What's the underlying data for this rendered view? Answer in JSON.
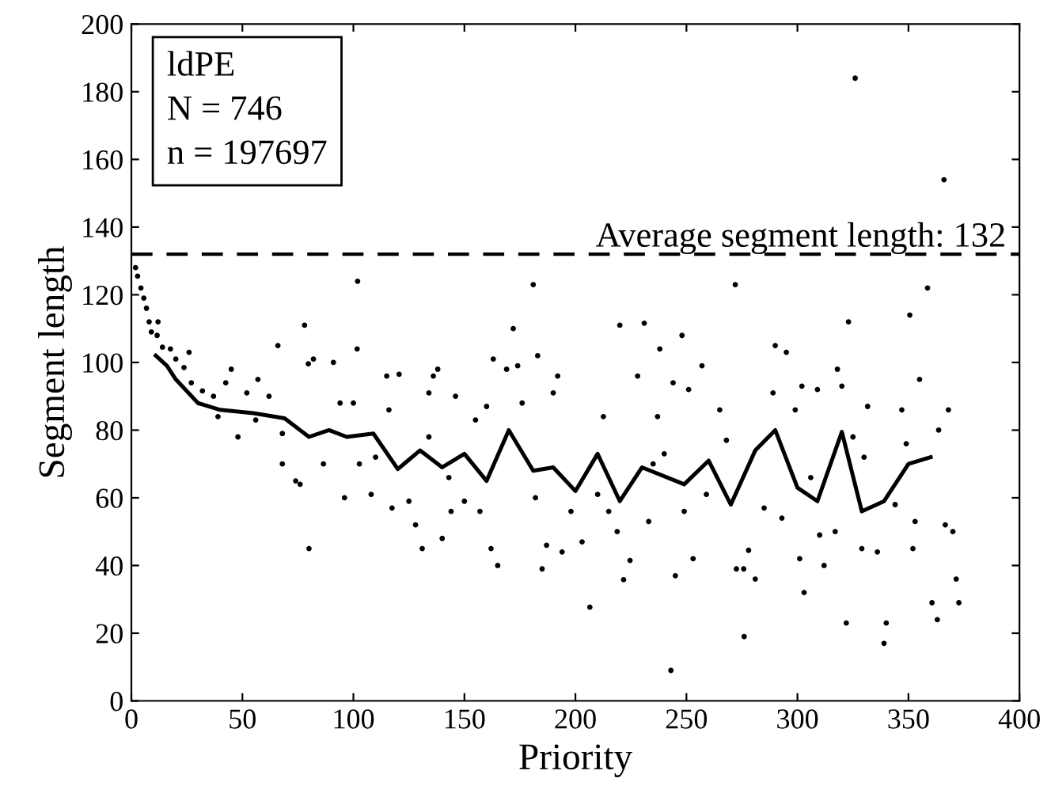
{
  "chart_data": {
    "type": "scatter",
    "xlabel": "Priority",
    "ylabel": "Segment length",
    "annotations": [
      "ldPE\nN = 746\nn = 197697"
    ],
    "xlim": [
      0,
      400
    ],
    "xticks": [
      0,
      50,
      100,
      150,
      200,
      250,
      300,
      350,
      400
    ],
    "ylim": [
      0,
      200
    ],
    "yticks": [
      0,
      20,
      40,
      60,
      80,
      100,
      120,
      140,
      160,
      180,
      200
    ],
    "grid": false,
    "legend": false,
    "ref_lines": [
      {
        "axis": "y",
        "value": 132,
        "label": "Average segment length: 132",
        "color": "#000000",
        "line_style": "dashed"
      }
    ],
    "series": [
      {
        "color": "#000000",
        "marker": "circle",
        "x": [
          1.9,
          2.8,
          4.3,
          5.6,
          6.8,
          8,
          9,
          11.6,
          12,
          14,
          17.6,
          20,
          23.7,
          26,
          27,
          32,
          37,
          39,
          45,
          42.5,
          48,
          52,
          57,
          56,
          62,
          66,
          68,
          68,
          74,
          76,
          78,
          80,
          79.7,
          82,
          86.5,
          91,
          94,
          96,
          100,
          101.7,
          101.9,
          102.7,
          110,
          108,
          115,
          120.6,
          116,
          117.4,
          125,
          128,
          131,
          134,
          134,
          136,
          138,
          140,
          143,
          144,
          146,
          150,
          155,
          157,
          160,
          162,
          163,
          165,
          169,
          172,
          174,
          176,
          181,
          182,
          183,
          185,
          187,
          190,
          192,
          194,
          198,
          203,
          206.5,
          210,
          212.6,
          215,
          218.8,
          220,
          221.7,
          224.6,
          228,
          231,
          233,
          235,
          237,
          238,
          240,
          243,
          244,
          245,
          248,
          249,
          251,
          253,
          257,
          259,
          265,
          268,
          272,
          275.8,
          278,
          276,
          272.5,
          281,
          285,
          289,
          290,
          295,
          293,
          299,
          301,
          302,
          303,
          306,
          309,
          310,
          312,
          317,
          318,
          320,
          322,
          323,
          325,
          326,
          330,
          329,
          331.6,
          336,
          339,
          340,
          344,
          347,
          349,
          350.6,
          352,
          353,
          355,
          358.6,
          360.6,
          363,
          363.6,
          366,
          366.6,
          368,
          370,
          371.5,
          372.7
        ],
        "values": [
          128,
          125.5,
          122,
          119,
          116,
          112,
          109,
          108,
          112,
          104.5,
          104,
          101,
          98.5,
          103,
          94,
          91.6,
          90,
          84,
          98,
          94,
          78,
          91,
          95,
          83,
          90,
          105,
          79,
          70,
          65,
          64,
          111,
          45,
          99.6,
          101,
          70,
          100,
          88,
          60,
          88,
          104,
          124,
          70,
          72,
          61,
          96,
          96.5,
          86,
          57,
          59,
          52,
          45,
          78,
          91,
          96,
          98,
          48,
          66,
          56,
          90,
          59,
          83,
          56,
          87,
          45,
          101,
          40,
          98,
          110,
          99,
          88,
          123,
          60,
          102,
          39,
          46,
          91,
          96,
          44,
          56,
          47,
          27.7,
          61,
          84,
          56,
          50,
          111,
          35.8,
          41.5,
          96,
          111.6,
          53,
          70,
          84,
          104,
          73,
          9,
          94,
          37,
          108,
          56,
          92,
          42,
          99,
          61,
          86,
          77,
          123,
          39,
          44.5,
          19,
          39,
          36,
          57,
          91,
          105,
          103,
          54,
          86,
          42,
          93,
          32,
          66,
          92,
          49,
          40,
          50,
          98,
          93,
          23,
          112,
          78,
          184,
          72,
          45,
          87,
          44,
          17,
          23,
          58,
          86,
          76,
          114,
          45,
          53,
          95,
          122,
          29,
          24,
          80,
          154,
          52,
          86,
          50,
          36,
          29
        ]
      },
      {
        "type": "line",
        "color": "#000000",
        "marker": "none",
        "line_style": "solid",
        "x": [
          11,
          16,
          20,
          30,
          40,
          55,
          69,
          80,
          89,
          97,
          109,
          120,
          130,
          140,
          150,
          160,
          170,
          181,
          190,
          200,
          210,
          220,
          230,
          249,
          260,
          270,
          281,
          290,
          300,
          309,
          320,
          329,
          339,
          350,
          360
        ],
        "values": [
          102,
          99,
          95,
          88,
          86,
          85,
          83.5,
          78,
          80,
          78,
          79,
          68.5,
          74,
          69,
          73,
          65,
          80,
          68,
          69,
          62,
          73,
          59,
          69,
          64,
          71,
          58,
          74,
          80,
          63,
          59,
          79.5,
          56,
          59,
          70,
          72
        ]
      }
    ]
  }
}
